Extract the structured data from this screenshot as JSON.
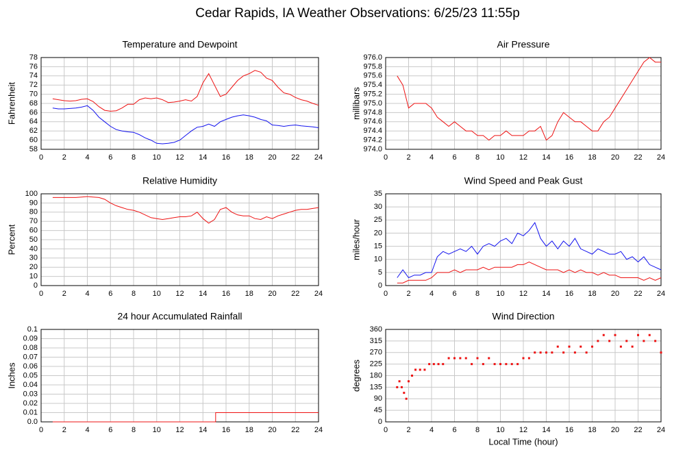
{
  "title": "Cedar Rapids, IA Weather Observations: 6/25/23 11:55p",
  "chart_data": [
    {
      "type": "line",
      "title": "Temperature and Dewpoint",
      "ylabel": "Fahrenheit",
      "x": [
        1,
        1.5,
        2,
        2.5,
        3,
        3.5,
        4,
        4.5,
        5,
        5.5,
        6,
        6.5,
        7,
        7.5,
        8,
        8.5,
        9,
        9.5,
        10,
        10.5,
        11,
        11.5,
        12,
        12.5,
        13,
        13.5,
        14,
        14.5,
        15,
        15.5,
        16,
        16.5,
        17,
        17.5,
        18,
        18.5,
        19,
        19.5,
        20,
        20.5,
        21,
        21.5,
        22,
        22.5,
        23,
        23.5,
        24
      ],
      "series": [
        {
          "color": "#ee1111",
          "values": [
            69,
            68.8,
            68.6,
            68.5,
            68.6,
            68.9,
            69,
            68.4,
            67.3,
            66.5,
            66.3,
            66.4,
            67,
            67.8,
            67.8,
            68.8,
            69.2,
            69,
            69.2,
            68.8,
            68.2,
            68.3,
            68.5,
            68.8,
            68.5,
            69.5,
            72.5,
            74.5,
            72,
            69.5,
            70,
            71.5,
            73,
            74,
            74.5,
            75.2,
            74.8,
            73.5,
            73,
            71.5,
            70.3,
            70,
            69.3,
            68.8,
            68.5,
            68,
            67.6
          ]
        },
        {
          "color": "#1111ee",
          "values": [
            67,
            66.8,
            66.8,
            66.9,
            67,
            67.2,
            67.5,
            66.5,
            65,
            64,
            63,
            62.3,
            62,
            61.8,
            61.7,
            61.2,
            60.5,
            60,
            59.3,
            59.2,
            59.3,
            59.5,
            60,
            61,
            62,
            62.8,
            63,
            63.5,
            63,
            64,
            64.5,
            65,
            65.3,
            65.5,
            65.3,
            65,
            64.5,
            64.2,
            63.3,
            63.2,
            63,
            63.2,
            63.3,
            63.1,
            63,
            62.9,
            62.7
          ]
        }
      ],
      "xlim": [
        0,
        24
      ],
      "xticks": [
        0,
        2,
        4,
        6,
        8,
        10,
        12,
        14,
        16,
        18,
        20,
        22,
        24
      ],
      "ylim": [
        58,
        78
      ],
      "yticks": [
        58,
        60,
        62,
        64,
        66,
        68,
        70,
        72,
        74,
        76,
        78
      ],
      "grid": true
    },
    {
      "type": "line",
      "title": "Air Pressure",
      "ylabel": "millibars",
      "x": [
        1,
        1.5,
        2,
        2.5,
        3,
        3.5,
        4,
        4.5,
        5,
        5.5,
        6,
        6.5,
        7,
        7.5,
        8,
        8.5,
        9,
        9.5,
        10,
        10.5,
        11,
        11.5,
        12,
        12.5,
        13,
        13.5,
        14,
        14.5,
        15,
        15.5,
        16,
        16.5,
        17,
        17.5,
        18,
        18.5,
        19,
        19.5,
        20,
        20.5,
        21,
        21.5,
        22,
        22.5,
        23,
        23.5,
        24
      ],
      "series": [
        {
          "color": "#ee1111",
          "values": [
            975.6,
            975.4,
            974.9,
            975.0,
            975.0,
            975.0,
            974.9,
            974.7,
            974.6,
            974.5,
            974.6,
            974.5,
            974.4,
            974.4,
            974.3,
            974.3,
            974.2,
            974.3,
            974.3,
            974.4,
            974.3,
            974.3,
            974.3,
            974.4,
            974.4,
            974.5,
            974.2,
            974.3,
            974.6,
            974.8,
            974.7,
            974.6,
            974.6,
            974.5,
            974.4,
            974.4,
            974.6,
            974.7,
            974.9,
            975.1,
            975.3,
            975.5,
            975.7,
            975.9,
            976.0,
            975.9,
            975.9
          ]
        }
      ],
      "xlim": [
        0,
        24
      ],
      "xticks": [
        0,
        2,
        4,
        6,
        8,
        10,
        12,
        14,
        16,
        18,
        20,
        22,
        24
      ],
      "ylim": [
        974,
        976
      ],
      "yticks": [
        {
          "value": 974,
          "label": "974.0"
        },
        974.2,
        974.4,
        974.6,
        974.8,
        {
          "value": 975,
          "label": "975.0"
        },
        975.2,
        975.4,
        975.6,
        975.8,
        {
          "value": 976,
          "label": "976.0"
        }
      ],
      "grid": true
    },
    {
      "type": "line",
      "title": "Relative Humidity",
      "ylabel": "Percent",
      "x": [
        1,
        1.5,
        2,
        2.5,
        3,
        3.5,
        4,
        4.5,
        5,
        5.5,
        6,
        6.5,
        7,
        7.5,
        8,
        8.5,
        9,
        9.5,
        10,
        10.5,
        11,
        11.5,
        12,
        12.5,
        13,
        13.5,
        14,
        14.5,
        15,
        15.5,
        16,
        16.5,
        17,
        17.5,
        18,
        18.5,
        19,
        19.5,
        20,
        20.5,
        21,
        21.5,
        22,
        22.5,
        23,
        23.5,
        24
      ],
      "series": [
        {
          "color": "#ee1111",
          "values": [
            96,
            96,
            96,
            96,
            96,
            96.5,
            97,
            96.5,
            96,
            94,
            90,
            87,
            85,
            83,
            82,
            80,
            77,
            74,
            73,
            72,
            73,
            74,
            75,
            75,
            76,
            80,
            73,
            68,
            72,
            83,
            85,
            80,
            77,
            76,
            76,
            73,
            72,
            75,
            73,
            76,
            78,
            80,
            82,
            83,
            83,
            84,
            85
          ]
        }
      ],
      "xlim": [
        0,
        24
      ],
      "xticks": [
        0,
        2,
        4,
        6,
        8,
        10,
        12,
        14,
        16,
        18,
        20,
        22,
        24
      ],
      "ylim": [
        0,
        100
      ],
      "yticks": [
        0,
        10,
        20,
        30,
        40,
        50,
        60,
        70,
        80,
        90,
        100
      ],
      "grid": true
    },
    {
      "type": "line",
      "title": "Wind Speed and Peak Gust",
      "ylabel": "miles/hour",
      "x": [
        1,
        1.5,
        2,
        2.5,
        3,
        3.5,
        4,
        4.5,
        5,
        5.5,
        6,
        6.5,
        7,
        7.5,
        8,
        8.5,
        9,
        9.5,
        10,
        10.5,
        11,
        11.5,
        12,
        12.5,
        13,
        13.5,
        14,
        14.5,
        15,
        15.5,
        16,
        16.5,
        17,
        17.5,
        18,
        18.5,
        19,
        19.5,
        20,
        20.5,
        21,
        21.5,
        22,
        22.5,
        23,
        23.5,
        24
      ],
      "series": [
        {
          "color": "#1111ee",
          "values": [
            3,
            6,
            3,
            4,
            4,
            5,
            5,
            11,
            13,
            12,
            13,
            14,
            13,
            15,
            12,
            15,
            16,
            15,
            17,
            18,
            16,
            20,
            19,
            21,
            24,
            18,
            15,
            17,
            14,
            17,
            15,
            18,
            14,
            13,
            12,
            14,
            13,
            12,
            12,
            13,
            10,
            11,
            9,
            11,
            8,
            7,
            6
          ]
        },
        {
          "color": "#ee1111",
          "values": [
            1,
            1,
            2,
            2,
            2,
            2,
            3,
            5,
            5,
            5,
            6,
            5,
            6,
            6,
            6,
            7,
            6,
            7,
            7,
            7,
            7,
            8,
            8,
            9,
            8,
            7,
            6,
            6,
            6,
            5,
            6,
            5,
            6,
            5,
            5,
            4,
            5,
            4,
            4,
            3,
            3,
            3,
            3,
            2,
            3,
            2,
            3
          ]
        }
      ],
      "xlim": [
        0,
        24
      ],
      "xticks": [
        0,
        2,
        4,
        6,
        8,
        10,
        12,
        14,
        16,
        18,
        20,
        22,
        24
      ],
      "ylim": [
        0,
        35
      ],
      "yticks": [
        0,
        5,
        10,
        15,
        20,
        25,
        30,
        35
      ],
      "grid": true
    },
    {
      "type": "line",
      "title": "24 hour Accumulated Rainfall",
      "ylabel": "Inches",
      "x": [
        1,
        15.1,
        15.1,
        24
      ],
      "series": [
        {
          "color": "#ee1111",
          "values": [
            0,
            0,
            0.01,
            0.01
          ]
        }
      ],
      "xlim": [
        0,
        24
      ],
      "xticks": [
        0,
        2,
        4,
        6,
        8,
        10,
        12,
        14,
        16,
        18,
        20,
        22,
        24
      ],
      "ylim": [
        0,
        0.1
      ],
      "yticks": [
        {
          "value": 0,
          "label": "0.0"
        },
        0.01,
        0.02,
        0.03,
        0.04,
        0.05,
        0.06,
        0.07,
        0.08,
        0.09,
        0.1
      ],
      "grid": true
    },
    {
      "type": "scatter",
      "title": "Wind Direction",
      "ylabel": "degrees",
      "xlabel": "Local Time (hour)",
      "x": [
        1,
        1.2,
        1.4,
        1.6,
        1.8,
        2,
        2.3,
        2.6,
        3,
        3.4,
        3.8,
        4.2,
        4.6,
        5,
        5.5,
        6,
        6.5,
        7,
        7.5,
        8,
        8.5,
        9,
        9.5,
        10,
        10.5,
        11,
        11.5,
        12,
        12.5,
        13,
        13.5,
        14,
        14.5,
        15,
        15.5,
        16,
        16.5,
        17,
        17.5,
        18,
        18.5,
        19,
        19.5,
        20,
        20.5,
        21,
        21.5,
        22,
        22.5,
        23,
        23.5,
        24
      ],
      "series": [
        {
          "color": "#ee1111",
          "values": [
            135,
            158,
            135,
            113,
            90,
            158,
            180,
            203,
            203,
            203,
            225,
            225,
            225,
            225,
            248,
            248,
            248,
            248,
            225,
            248,
            225,
            248,
            225,
            225,
            225,
            225,
            225,
            248,
            248,
            270,
            270,
            270,
            270,
            293,
            270,
            293,
            270,
            293,
            270,
            293,
            315,
            338,
            315,
            338,
            293,
            315,
            293,
            338,
            315,
            338,
            315,
            270
          ]
        }
      ],
      "xlim": [
        0,
        24
      ],
      "xticks": [
        0,
        2,
        4,
        6,
        8,
        10,
        12,
        14,
        16,
        18,
        20,
        22,
        24
      ],
      "ylim": [
        0,
        360
      ],
      "yticks": [
        0,
        45,
        90,
        135,
        180,
        225,
        270,
        315,
        360
      ],
      "grid": true
    }
  ]
}
